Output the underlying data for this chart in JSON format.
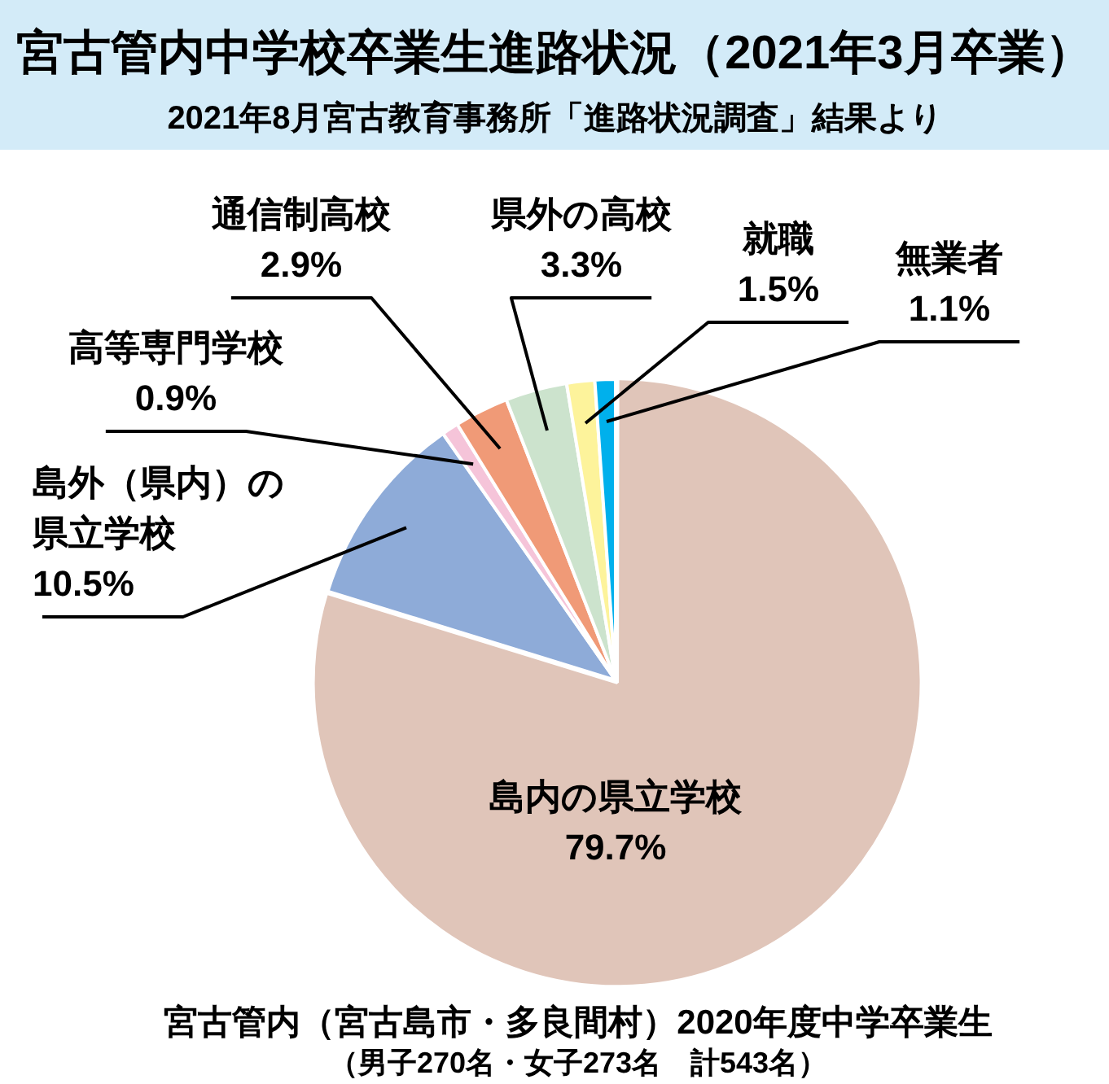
{
  "chart_data": {
    "type": "pie",
    "title": "宮古管内中学校卒業生進路状況（2021年3月卒業）",
    "subtitle": "2021年8月宮古教育事務所「進路状況調査」結果より",
    "categories": [
      "島内の県立学校",
      "島外（県内）の県立学校",
      "高等専門学校",
      "通信制高校",
      "県外の高校",
      "就職",
      "無業者"
    ],
    "values": [
      79.7,
      10.5,
      0.9,
      2.9,
      3.3,
      1.5,
      1.1
    ],
    "value_labels": [
      "79.7%",
      "10.5%",
      "0.9%",
      "2.9%",
      "3.3%",
      "1.5%",
      "1.1%"
    ],
    "colors": [
      "#e0c5b9",
      "#8eabd8",
      "#f5c4d9",
      "#f09a77",
      "#cce3cd",
      "#fdf39b",
      "#00b0ec"
    ],
    "annotations": [
      "宮古管内（宮古島市・多良間村）2020年度中学卒業生",
      "（男子270名・女子273名　計543名）"
    ]
  }
}
